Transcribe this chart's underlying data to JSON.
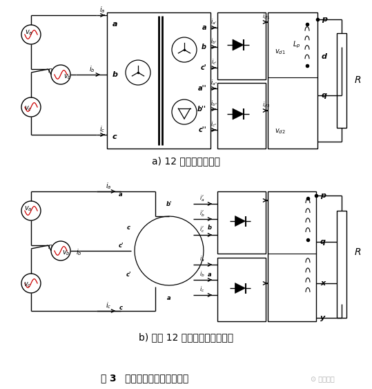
{
  "title_a": "a) 12 脉冲变压整流器",
  "title_b": "b) 对称 12 脉冲自耦变压整流器",
  "fig_label_pre": "图",
  "fig_label_num": "3",
  "fig_label_post": "   多脉冲变压整流器原理图",
  "watermark": "⊙ 电源联盟",
  "bg_color": "#ffffff",
  "line_color": "#000000",
  "red_color": "#cc0000",
  "lw": 1.0
}
